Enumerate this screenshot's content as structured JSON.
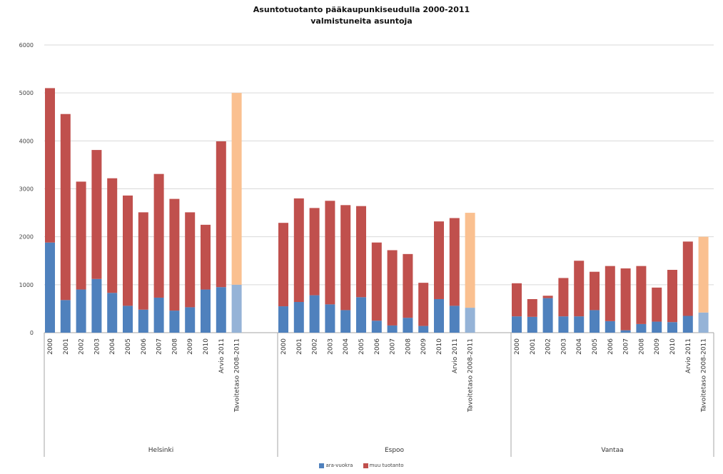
{
  "chart_data": {
    "type": "bar",
    "stacked": true,
    "title": "Asuntotuotanto pääkaupunkiseudulla 2000-2011",
    "subtitle": "valmistuneita asuntoja",
    "ylim": [
      0,
      6000
    ],
    "yticks": [
      0,
      1000,
      2000,
      3000,
      4000,
      5000,
      6000
    ],
    "grid": true,
    "legend_position": "bottom",
    "colors": {
      "ara": "#4f81bd",
      "muu": "#c0504d",
      "target_ara": "#95b3d7",
      "target_muu": "#fac090",
      "grid": "#d9d9d9",
      "axis": "#a6a6a6"
    },
    "categories": [
      "2000",
      "2001",
      "2002",
      "2003",
      "2004",
      "2005",
      "2006",
      "2007",
      "2008",
      "2009",
      "2010",
      "Arvio 2011",
      "Tavoitetaso 2008-2011"
    ],
    "series": [
      {
        "name": "ara-vuokra"
      },
      {
        "name": "muu tuotanto"
      }
    ],
    "groups": [
      {
        "name": "Helsinki",
        "ara": [
          1880,
          680,
          900,
          1120,
          830,
          560,
          480,
          730,
          460,
          530,
          900,
          950,
          1000
        ],
        "total": [
          5100,
          4560,
          3150,
          3810,
          3220,
          2860,
          2510,
          3310,
          2790,
          2510,
          2250,
          3990,
          5000
        ]
      },
      {
        "name": "Espoo",
        "ara": [
          550,
          640,
          780,
          590,
          470,
          740,
          250,
          150,
          310,
          140,
          700,
          560,
          520
        ],
        "total": [
          2290,
          2800,
          2600,
          2750,
          2660,
          2640,
          1880,
          1720,
          1640,
          1040,
          2320,
          2390,
          2500
        ]
      },
      {
        "name": "Vantaa",
        "ara": [
          340,
          330,
          720,
          340,
          340,
          470,
          240,
          50,
          180,
          230,
          220,
          350,
          420
        ],
        "total": [
          1030,
          700,
          770,
          1140,
          1500,
          1270,
          1390,
          1340,
          1390,
          940,
          1310,
          1900,
          2000
        ]
      }
    ]
  }
}
